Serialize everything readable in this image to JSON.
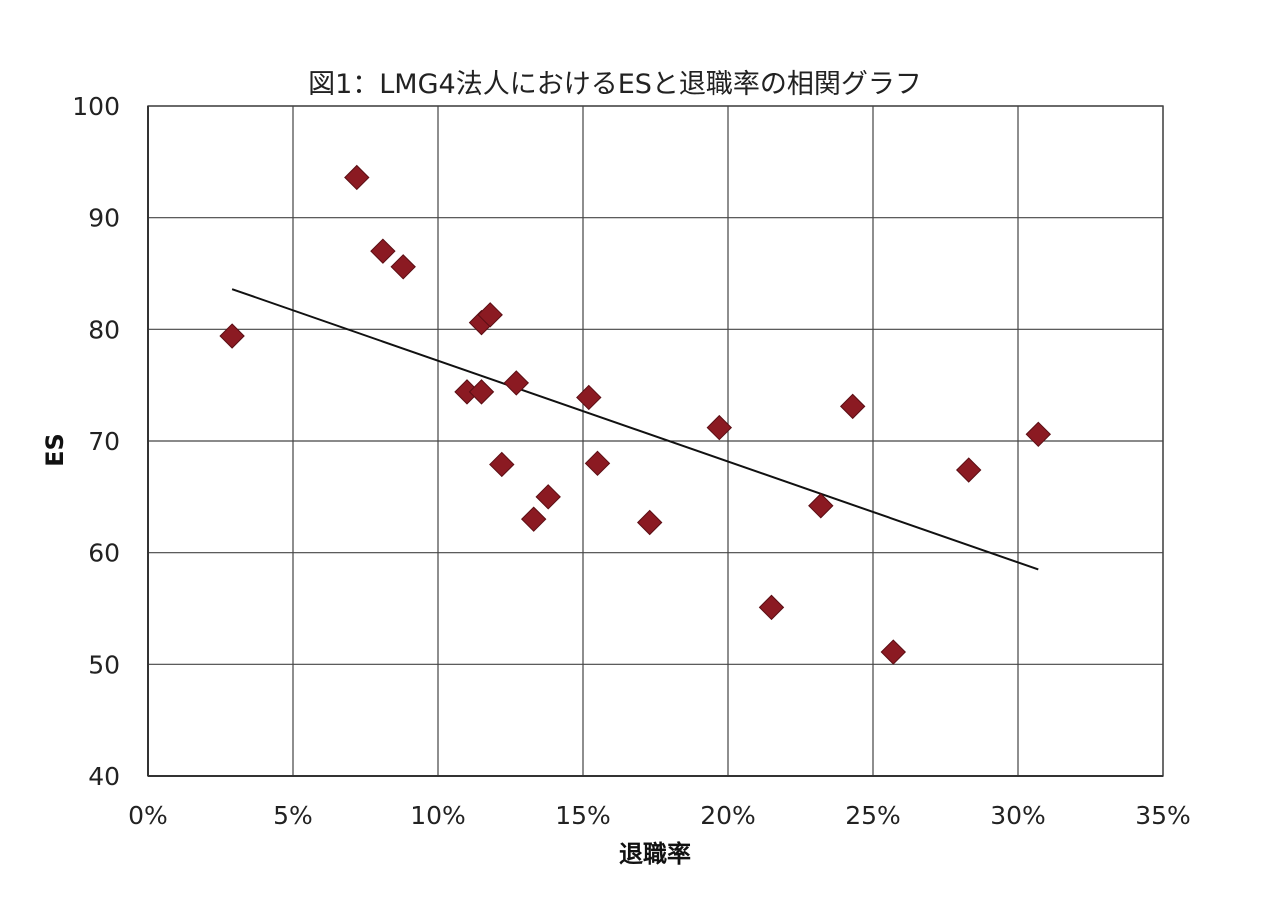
{
  "chart_data": {
    "type": "scatter",
    "title": "図1：LMG4法人におけるESと退職率の相関グラフ",
    "xlabel": "退職率",
    "ylabel": "ES",
    "xlim": [
      0,
      0.35
    ],
    "ylim": [
      40,
      100
    ],
    "x_ticks": [
      0,
      0.05,
      0.1,
      0.15,
      0.2,
      0.25,
      0.3,
      0.35
    ],
    "x_tick_labels": [
      "0%",
      "5%",
      "10%",
      "15%",
      "20%",
      "25%",
      "30%",
      "35%"
    ],
    "y_ticks": [
      40,
      50,
      60,
      70,
      80,
      90,
      100
    ],
    "y_tick_labels": [
      "40",
      "50",
      "60",
      "70",
      "80",
      "90",
      "100"
    ],
    "grid": true,
    "marker_color": "#8b1a22",
    "trendline_color": "#111111",
    "points": [
      {
        "x": 0.029,
        "y": 79.4
      },
      {
        "x": 0.072,
        "y": 93.6
      },
      {
        "x": 0.081,
        "y": 87.0
      },
      {
        "x": 0.088,
        "y": 85.6
      },
      {
        "x": 0.11,
        "y": 74.4
      },
      {
        "x": 0.115,
        "y": 74.4
      },
      {
        "x": 0.115,
        "y": 80.6
      },
      {
        "x": 0.118,
        "y": 81.3
      },
      {
        "x": 0.122,
        "y": 67.9
      },
      {
        "x": 0.127,
        "y": 75.2
      },
      {
        "x": 0.133,
        "y": 63.0
      },
      {
        "x": 0.138,
        "y": 65.0
      },
      {
        "x": 0.152,
        "y": 73.9
      },
      {
        "x": 0.155,
        "y": 68.0
      },
      {
        "x": 0.173,
        "y": 62.7
      },
      {
        "x": 0.197,
        "y": 71.2
      },
      {
        "x": 0.215,
        "y": 55.1
      },
      {
        "x": 0.232,
        "y": 64.2
      },
      {
        "x": 0.243,
        "y": 73.1
      },
      {
        "x": 0.257,
        "y": 51.1
      },
      {
        "x": 0.283,
        "y": 67.4
      },
      {
        "x": 0.307,
        "y": 70.6
      }
    ],
    "trendline": {
      "x": [
        0.029,
        0.307
      ],
      "y": [
        83.6,
        58.5
      ]
    }
  }
}
